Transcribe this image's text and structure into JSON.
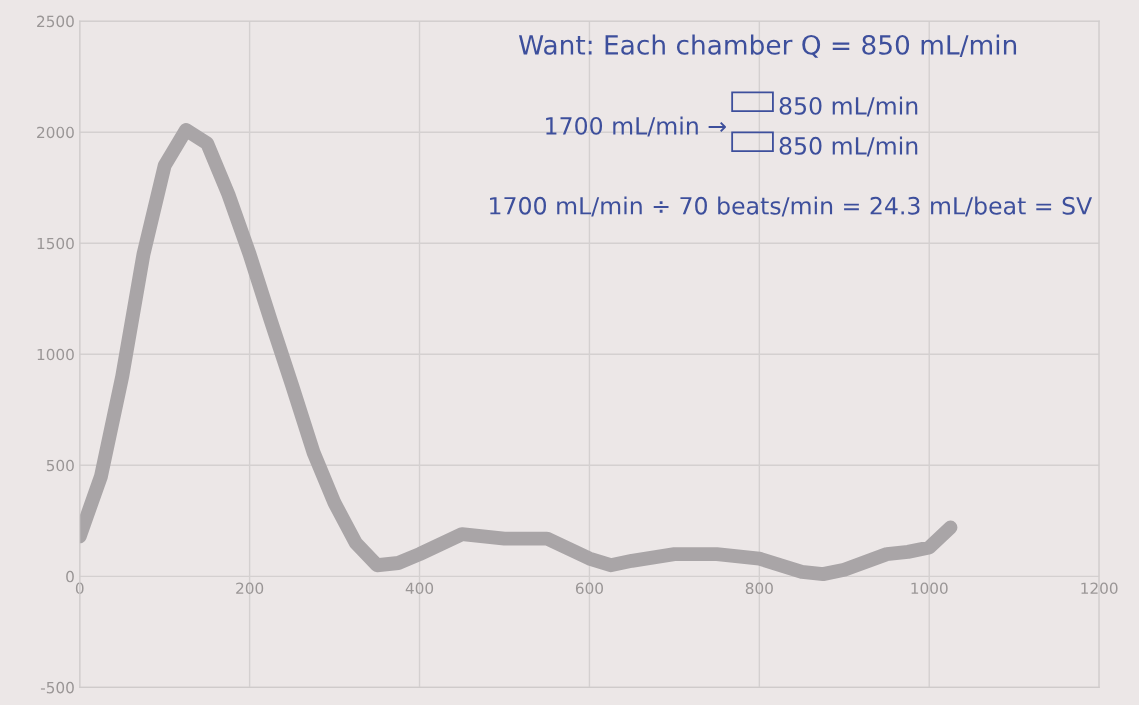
{
  "chart_data": {
    "type": "line",
    "x": [
      0,
      25,
      50,
      75,
      100,
      125,
      150,
      175,
      200,
      225,
      250,
      275,
      300,
      325,
      350,
      375,
      400,
      450,
      500,
      550,
      600,
      625,
      650,
      700,
      750,
      800,
      850,
      875,
      900,
      950,
      975,
      1000,
      1025
    ],
    "series": [
      {
        "color": "#a9a5a7",
        "values": [
          180,
          450,
          900,
          1450,
          1850,
          2010,
          1950,
          1720,
          1450,
          1150,
          860,
          560,
          330,
          150,
          50,
          60,
          100,
          190,
          170,
          170,
          80,
          50,
          70,
          100,
          100,
          80,
          20,
          10,
          30,
          100,
          110,
          130,
          220
        ]
      }
    ],
    "xlim": [
      0,
      1200
    ],
    "xticks": [
      0,
      200,
      400,
      600,
      800,
      1000,
      1200
    ],
    "ylim": [
      -500,
      2500
    ],
    "yticks": [
      -500,
      0,
      500,
      1000,
      1500,
      2000,
      2500
    ],
    "grid": true,
    "line_style": "solid",
    "annotations": [
      "Want: Each chamber Q = 850 mL/min",
      "1700 mL/min →",
      "850 mL/min",
      "850 mL/min",
      "1700 mL/min ÷ 70 beats/min = 24.3 mL/beat = SV"
    ]
  }
}
